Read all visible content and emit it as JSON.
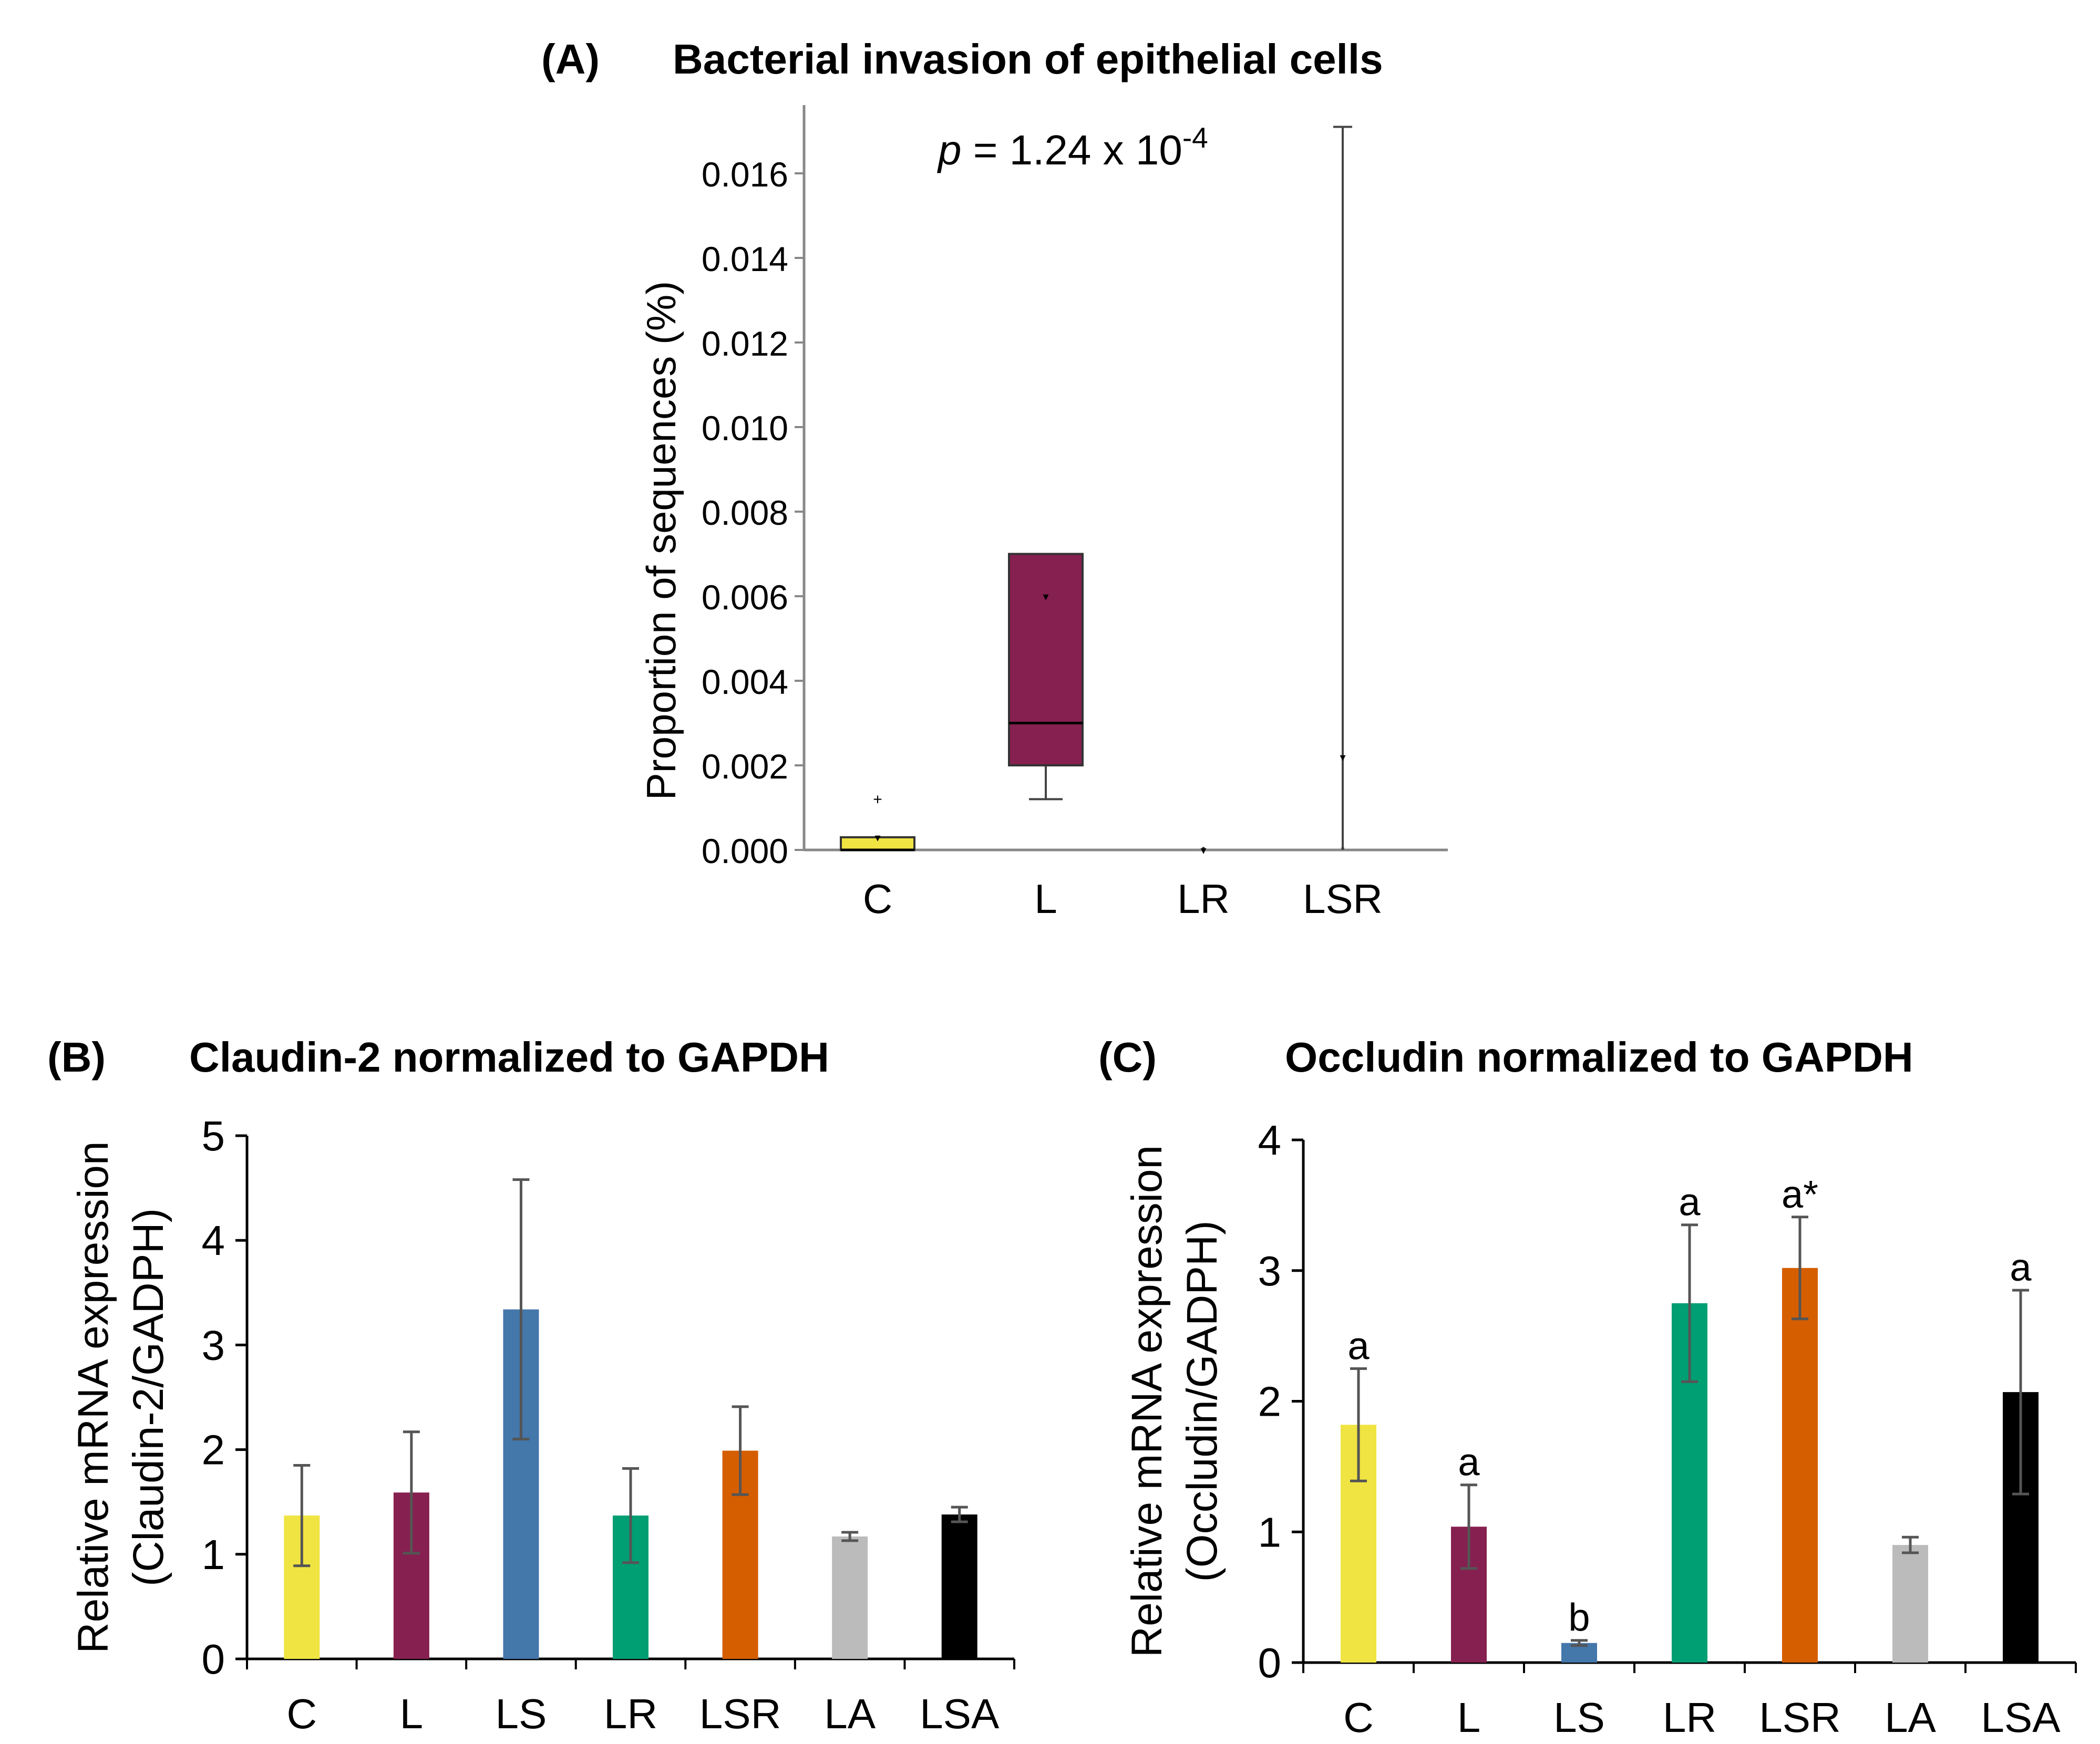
{
  "panels": [
    {
      "id": "A",
      "panel_label": "(A)",
      "chart_data": {
        "type": "box",
        "title": "Bacterial invasion of epithelial cells",
        "annotation": {
          "prefix": "p",
          "text": " = 1.24 x 10",
          "exponent": "-4"
        },
        "ylabel": "Proportion of sequences (%)",
        "xlabel": "",
        "ylim": [
          0,
          0.0175
        ],
        "yticks": [
          "0.000",
          "0.002",
          "0.004",
          "0.006",
          "0.008",
          "0.010",
          "0.012",
          "0.014",
          "0.016"
        ],
        "categories": [
          "C",
          "L",
          "LR",
          "LSR"
        ],
        "colors": [
          "#f0e442",
          "#862050",
          "#ffffff",
          "#ffffff"
        ],
        "boxes": [
          {
            "min": 0.0,
            "q1": 0.0,
            "median": 0.0,
            "q3": 0.0003,
            "max": 0.0003,
            "mean": 0.0003,
            "outliers": [
              0.0012
            ]
          },
          {
            "min": 0.0012,
            "q1": 0.002,
            "median": 0.003,
            "q3": 0.007,
            "max": 0.007,
            "mean": 0.006,
            "outliers": []
          },
          {
            "min": 0.0,
            "q1": 0.0,
            "median": 0.0,
            "q3": 0.0,
            "max": 0.0,
            "mean": 0.0,
            "outliers": []
          },
          {
            "min": 0.0,
            "q1": 0.0,
            "median": 0.0,
            "q3": 0.0,
            "max": 0.0171,
            "mean": 0.0022,
            "outliers": []
          }
        ]
      }
    },
    {
      "id": "B",
      "panel_label": "(B)",
      "chart_data": {
        "type": "bar",
        "title": "Claudin-2 normalized to GAPDH",
        "ylabel_line1": "Relative mRNA expression",
        "ylabel_line2": "(Claudin-2/GADPH)",
        "xlabel": "",
        "ylim": [
          0,
          5
        ],
        "yticks": [
          "0",
          "1",
          "2",
          "3",
          "4",
          "5"
        ],
        "categories": [
          "C",
          "L",
          "LS",
          "LR",
          "LSR",
          "LA",
          "LSA"
        ],
        "values": [
          1.37,
          1.59,
          3.34,
          1.37,
          1.99,
          1.17,
          1.38
        ],
        "errors": [
          0.48,
          0.58,
          1.24,
          0.45,
          0.42,
          0.04,
          0.07
        ],
        "colors": [
          "#f0e442",
          "#862050",
          "#4477aa",
          "#009e73",
          "#d55e00",
          "#bbbbbb",
          "#000000"
        ],
        "letters": []
      }
    },
    {
      "id": "C",
      "panel_label": "(C)",
      "chart_data": {
        "type": "bar",
        "title": "Occludin normalized to GAPDH",
        "ylabel_line1": "Relative mRNA expression",
        "ylabel_line2": "(Occludin/GADPH)",
        "xlabel": "",
        "ylim": [
          0,
          4
        ],
        "yticks": [
          "0",
          "1",
          "2",
          "3",
          "4"
        ],
        "categories": [
          "C",
          "L",
          "LS",
          "LR",
          "LSR",
          "LA",
          "LSA"
        ],
        "values": [
          1.82,
          1.04,
          0.15,
          2.75,
          3.02,
          0.9,
          2.07
        ],
        "errors": [
          0.43,
          0.32,
          0.02,
          0.6,
          0.39,
          0.06,
          0.78
        ],
        "colors": [
          "#f0e442",
          "#862050",
          "#4477aa",
          "#009e73",
          "#d55e00",
          "#bbbbbb",
          "#000000"
        ],
        "letters": [
          "a",
          "a",
          "b",
          "a",
          "a*",
          "",
          "a"
        ]
      }
    }
  ]
}
